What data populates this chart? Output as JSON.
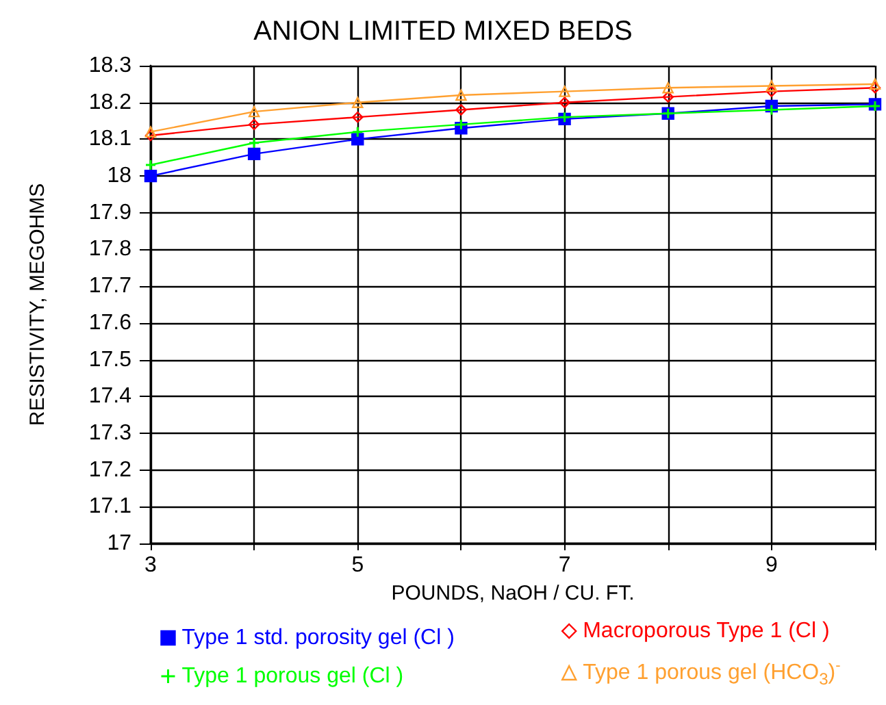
{
  "chart_data": {
    "type": "line",
    "title": "ANION LIMITED MIXED BEDS",
    "xlabel": "POUNDS, NaOH / CU. FT.",
    "ylabel": "RESISTIVITY, MEGOHMS",
    "x": [
      3,
      4,
      5,
      6,
      7,
      8,
      9,
      10
    ],
    "series": [
      {
        "name": "Type 1 std. porosity gel (Cl )",
        "color": "#0000ff",
        "marker": "square",
        "values": [
          18.0,
          18.06,
          18.1,
          18.13,
          18.155,
          18.17,
          18.19,
          18.195
        ]
      },
      {
        "name": "Macroporous Type 1 (Cl )",
        "color": "#ff0000",
        "marker": "diamond",
        "values": [
          18.11,
          18.14,
          18.16,
          18.18,
          18.2,
          18.215,
          18.23,
          18.24
        ]
      },
      {
        "name": "Type 1 porous gel (Cl )",
        "color": "#00ff00",
        "marker": "cross",
        "values": [
          18.03,
          18.09,
          18.12,
          18.14,
          18.16,
          18.17,
          18.18,
          18.19
        ]
      },
      {
        "name": "Type 1 porous gel (HCO$_{3}$)$^{-}$",
        "color": "#ffa030",
        "marker": "triangle",
        "values": [
          18.12,
          18.175,
          18.2,
          18.22,
          18.23,
          18.24,
          18.245,
          18.25
        ]
      }
    ],
    "xlim": [
      3,
      10
    ],
    "xticks": [
      3,
      {
        "value": 4,
        "label": null
      },
      5,
      {
        "value": 6,
        "label": null
      },
      7,
      {
        "value": 8,
        "label": null
      },
      9,
      {
        "value": 10,
        "label": null
      }
    ],
    "ylim": [
      17,
      18.3
    ],
    "yticks": [
      17,
      17.1,
      17.2,
      17.3,
      17.4,
      17.5,
      17.6,
      17.7,
      17.8,
      17.9,
      18,
      18.1,
      18.2,
      18.3
    ],
    "grid": true,
    "legend": "bottom",
    "line_style": "solid"
  }
}
